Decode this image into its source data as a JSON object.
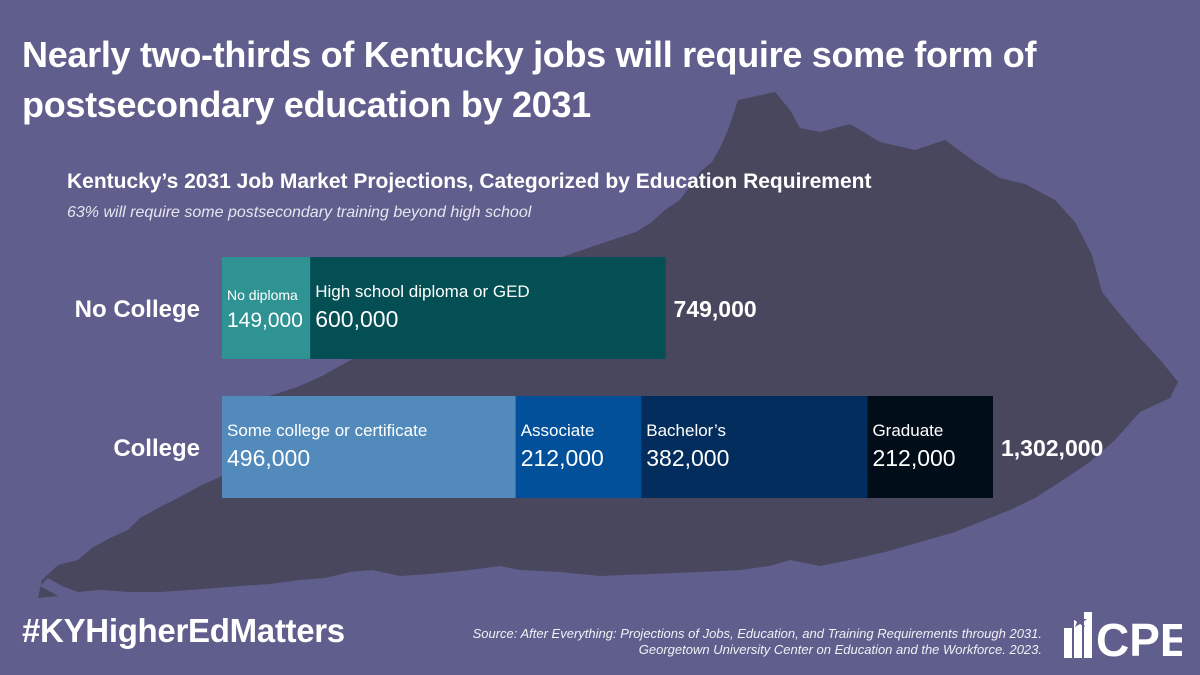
{
  "headline": "Nearly two-thirds of Kentucky jobs will require some form of postsecondary education by 2031",
  "footer": {
    "hashtag": "#KYHigherEdMatters",
    "source_line1": "Source: After Everything: Projections of Jobs, Education, and Training Requirements through 2031.",
    "source_line2": "Georgetown University Center on Education and the Workforce. 2023.",
    "logo_text": "CPE",
    "logo_icon": "star-people-icon"
  },
  "colors": {
    "background": "#5f5e8c",
    "map": "#48475e",
    "no_diploma": "#2f9293",
    "hs_diploma": "#034f53",
    "some_college": "#518abb",
    "associate": "#02509a",
    "bachelors": "#022d5c",
    "graduate": "#020d1a"
  },
  "chart_data": {
    "type": "bar",
    "orientation": "horizontal",
    "stacked": true,
    "title": "Kentucky’s 2031 Job Market Projections, Categorized by Education Requirement",
    "subtitle": "63% will require some postsecondary training beyond high school",
    "xlim": [
      0,
      1302000
    ],
    "grid": false,
    "rows": [
      {
        "label": "No College",
        "total": 749000,
        "total_label": "749,000",
        "segments": [
          {
            "name": "No diploma",
            "value": 149000,
            "value_label": "149,000",
            "color": "#2f9293"
          },
          {
            "name": "High school diploma or GED",
            "value": 600000,
            "value_label": "600,000",
            "color": "#034f53"
          }
        ]
      },
      {
        "label": "College",
        "total": 1302000,
        "total_label": "1,302,000",
        "segments": [
          {
            "name": "Some college or certificate",
            "value": 496000,
            "value_label": "496,000",
            "color": "#518abb"
          },
          {
            "name": "Associate",
            "value": 212000,
            "value_label": "212,000",
            "color": "#02509a"
          },
          {
            "name": "Bachelor’s",
            "value": 382000,
            "value_label": "382,000",
            "color": "#022d5c"
          },
          {
            "name": "Graduate",
            "value": 212000,
            "value_label": "212,000",
            "color": "#020d1a"
          }
        ]
      }
    ]
  }
}
